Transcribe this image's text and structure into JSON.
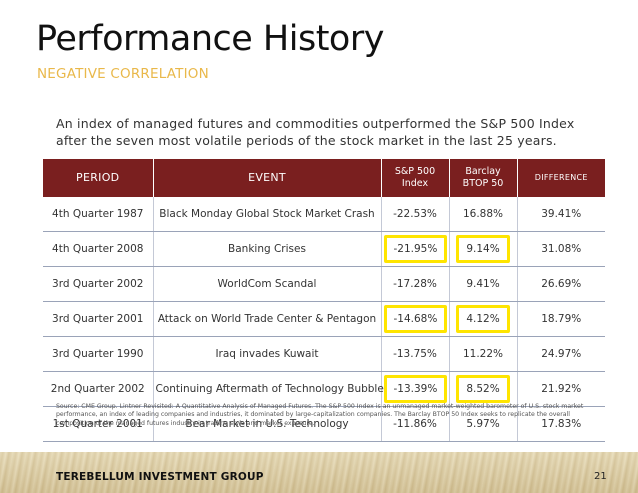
{
  "slide": {
    "title": "Performance History",
    "subtitle": "NEGATIVE CORRELATION",
    "intro": "An index of managed futures and commodities outperformed the S&P 500 Index after the seven most volatile periods of the stock market in the last 25 years.",
    "source": "Source: CME Group. Lintner Revisited: A Quantitative Analysis of Managed Futures. The S&P 500 Index is an unmanaged market-weighted barometer of U.S. stock market performance, an index of leading companies and industries, it dominated by large-capitalization companies. The Barclay BTOP 50 Index seeks to replicate the overall composition of the managed futures industry in trading style and market exposure.",
    "company": "TEREBELLUM INVESTMENT GROUP",
    "page_number": "21"
  },
  "table": {
    "headers": {
      "period": "PERIOD",
      "event": "EVENT",
      "sp500_line1": "S&P 500",
      "sp500_line2": "Index",
      "barclay_line1": "Barclay",
      "barclay_line2": "BTOP 50",
      "difference": "DIFFERENCE"
    },
    "rows": [
      {
        "period": "4th Quarter 1987",
        "event": "Black Monday Global Stock Market Crash",
        "sp500": "-22.53%",
        "barclay": "16.88%",
        "difference": "39.41%",
        "highlight": false
      },
      {
        "period": "4th Quarter 2008",
        "event": "Banking Crises",
        "sp500": "-21.95%",
        "barclay": "9.14%",
        "difference": "31.08%",
        "highlight": true
      },
      {
        "period": "3rd Quarter 2002",
        "event": "WorldCom Scandal",
        "sp500": "-17.28%",
        "barclay": "9.41%",
        "difference": "26.69%",
        "highlight": false
      },
      {
        "period": "3rd Quarter 2001",
        "event": "Attack on World Trade Center & Pentagon",
        "sp500": "-14.68%",
        "barclay": "4.12%",
        "difference": "18.79%",
        "highlight": true
      },
      {
        "period": "3rd Quarter 1990",
        "event": "Iraq invades Kuwait",
        "sp500": "-13.75%",
        "barclay": "11.22%",
        "difference": "24.97%",
        "highlight": false
      },
      {
        "period": "2nd Quarter 2002",
        "event": "Continuing Aftermath of Technology Bubble",
        "sp500": "-13.39%",
        "barclay": "8.52%",
        "difference": "21.92%",
        "highlight": true
      },
      {
        "period": "1st Quarter 2001",
        "event": "Bear Market in U.S. Technology",
        "sp500": "-11.86%",
        "barclay": "5.97%",
        "difference": "17.83%",
        "highlight": false
      }
    ]
  },
  "colors": {
    "header_bg": "#7a1f1f",
    "subtitle": "#e9b84a",
    "highlight_box": "#ffe500"
  }
}
